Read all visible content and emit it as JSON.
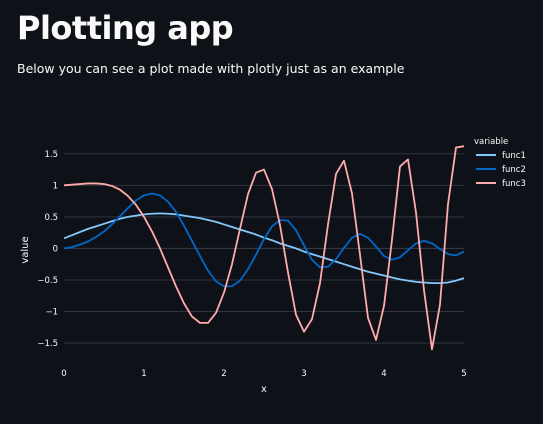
{
  "page": {
    "title": "Plotting app",
    "description": "Below you can see a plot made with plotly just as an example"
  },
  "colors": {
    "background": "#0e1117",
    "text": "#fafafa",
    "grid": "#31333f",
    "func1": "#83c9ff",
    "func2": "#0068c9",
    "func3": "#ffabab"
  },
  "chart_data": {
    "type": "line",
    "xlabel": "x",
    "ylabel": "value",
    "legend_title": "variable",
    "legend_position": "top-right",
    "grid": true,
    "xlim": [
      0,
      5
    ],
    "ylim": [
      -1.8,
      1.75
    ],
    "x_ticks": [
      0,
      1,
      2,
      3,
      4,
      5
    ],
    "x_tick_labels": [
      "0",
      "1",
      "2",
      "3",
      "4",
      "5"
    ],
    "y_ticks": [
      1.5,
      1,
      0.5,
      0,
      -0.5,
      -1,
      -1.5
    ],
    "y_tick_labels": [
      "1.5",
      "1",
      "0.5",
      "0",
      "−0.5",
      "−1",
      "−1.5"
    ],
    "x": [
      0,
      0.1,
      0.2,
      0.3,
      0.4,
      0.5,
      0.6,
      0.7,
      0.8,
      0.9,
      1.0,
      1.1,
      1.2,
      1.3,
      1.4,
      1.5,
      1.6,
      1.7,
      1.8,
      1.9,
      2.0,
      2.1,
      2.2,
      2.3,
      2.4,
      2.5,
      2.6,
      2.7,
      2.8,
      2.9,
      3.0,
      3.1,
      3.2,
      3.3,
      3.4,
      3.5,
      3.6,
      3.7,
      3.8,
      3.9,
      4.0,
      4.1,
      4.2,
      4.3,
      4.4,
      4.5,
      4.6,
      4.7,
      4.8,
      4.9,
      5.0
    ],
    "series": [
      {
        "name": "func1",
        "values": [
          0.16,
          0.21,
          0.26,
          0.31,
          0.35,
          0.39,
          0.43,
          0.47,
          0.5,
          0.52,
          0.54,
          0.55,
          0.555,
          0.55,
          0.54,
          0.52,
          0.5,
          0.48,
          0.45,
          0.42,
          0.38,
          0.34,
          0.3,
          0.26,
          0.22,
          0.17,
          0.13,
          0.08,
          0.04,
          0.0,
          -0.05,
          -0.09,
          -0.13,
          -0.17,
          -0.21,
          -0.25,
          -0.29,
          -0.33,
          -0.37,
          -0.4,
          -0.43,
          -0.46,
          -0.49,
          -0.51,
          -0.53,
          -0.54,
          -0.55,
          -0.55,
          -0.54,
          -0.51,
          -0.47
        ]
      },
      {
        "name": "func2",
        "values": [
          0.0,
          0.02,
          0.06,
          0.11,
          0.18,
          0.27,
          0.38,
          0.51,
          0.64,
          0.76,
          0.84,
          0.87,
          0.84,
          0.74,
          0.58,
          0.36,
          0.12,
          -0.12,
          -0.35,
          -0.52,
          -0.6,
          -0.6,
          -0.51,
          -0.33,
          -0.1,
          0.15,
          0.35,
          0.45,
          0.44,
          0.29,
          0.05,
          -0.18,
          -0.3,
          -0.29,
          -0.17,
          0.01,
          0.17,
          0.23,
          0.17,
          0.03,
          -0.12,
          -0.18,
          -0.14,
          -0.03,
          0.08,
          0.12,
          0.08,
          -0.01,
          -0.09,
          -0.11,
          -0.05
        ]
      },
      {
        "name": "func3",
        "values": [
          1.0,
          1.01,
          1.02,
          1.03,
          1.03,
          1.02,
          0.99,
          0.93,
          0.83,
          0.69,
          0.5,
          0.27,
          0.0,
          -0.3,
          -0.6,
          -0.87,
          -1.08,
          -1.18,
          -1.18,
          -1.02,
          -0.7,
          -0.25,
          0.31,
          0.86,
          1.2,
          1.25,
          0.94,
          0.37,
          -0.38,
          -1.05,
          -1.32,
          -1.12,
          -0.55,
          0.38,
          1.18,
          1.39,
          0.87,
          -0.1,
          -1.1,
          -1.45,
          -0.91,
          0.14,
          1.3,
          1.41,
          0.57,
          -0.66,
          -1.6,
          -0.89,
          0.7,
          1.6,
          1.62
        ]
      }
    ]
  }
}
